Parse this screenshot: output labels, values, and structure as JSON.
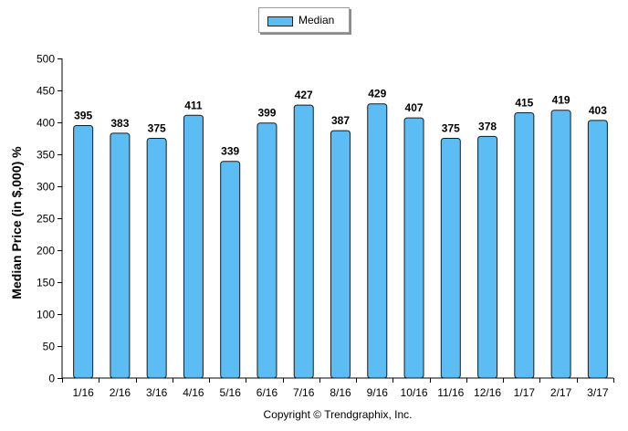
{
  "legend": {
    "label": "Median",
    "swatch_color": "#5bbdf4"
  },
  "footer": {
    "copyright": "Copyright © Trendgraphix, Inc."
  },
  "chart_data": {
    "type": "bar",
    "title": "",
    "xlabel": "",
    "ylabel": "Median Price (in $,000) %",
    "ylim": [
      0,
      500
    ],
    "yticks": [
      0,
      50,
      100,
      150,
      200,
      250,
      300,
      350,
      400,
      450,
      500
    ],
    "categories": [
      "1/16",
      "2/16",
      "3/16",
      "4/16",
      "5/16",
      "6/16",
      "7/16",
      "8/16",
      "9/16",
      "10/16",
      "11/16",
      "12/16",
      "1/17",
      "2/17",
      "3/17"
    ],
    "series": [
      {
        "name": "Median",
        "color": "#5bbdf4",
        "values": [
          395,
          383,
          375,
          411,
          339,
          399,
          427,
          387,
          429,
          407,
          375,
          378,
          415,
          419,
          403
        ]
      }
    ],
    "data_labels": true,
    "grid": false,
    "legend_position": "top-center"
  }
}
